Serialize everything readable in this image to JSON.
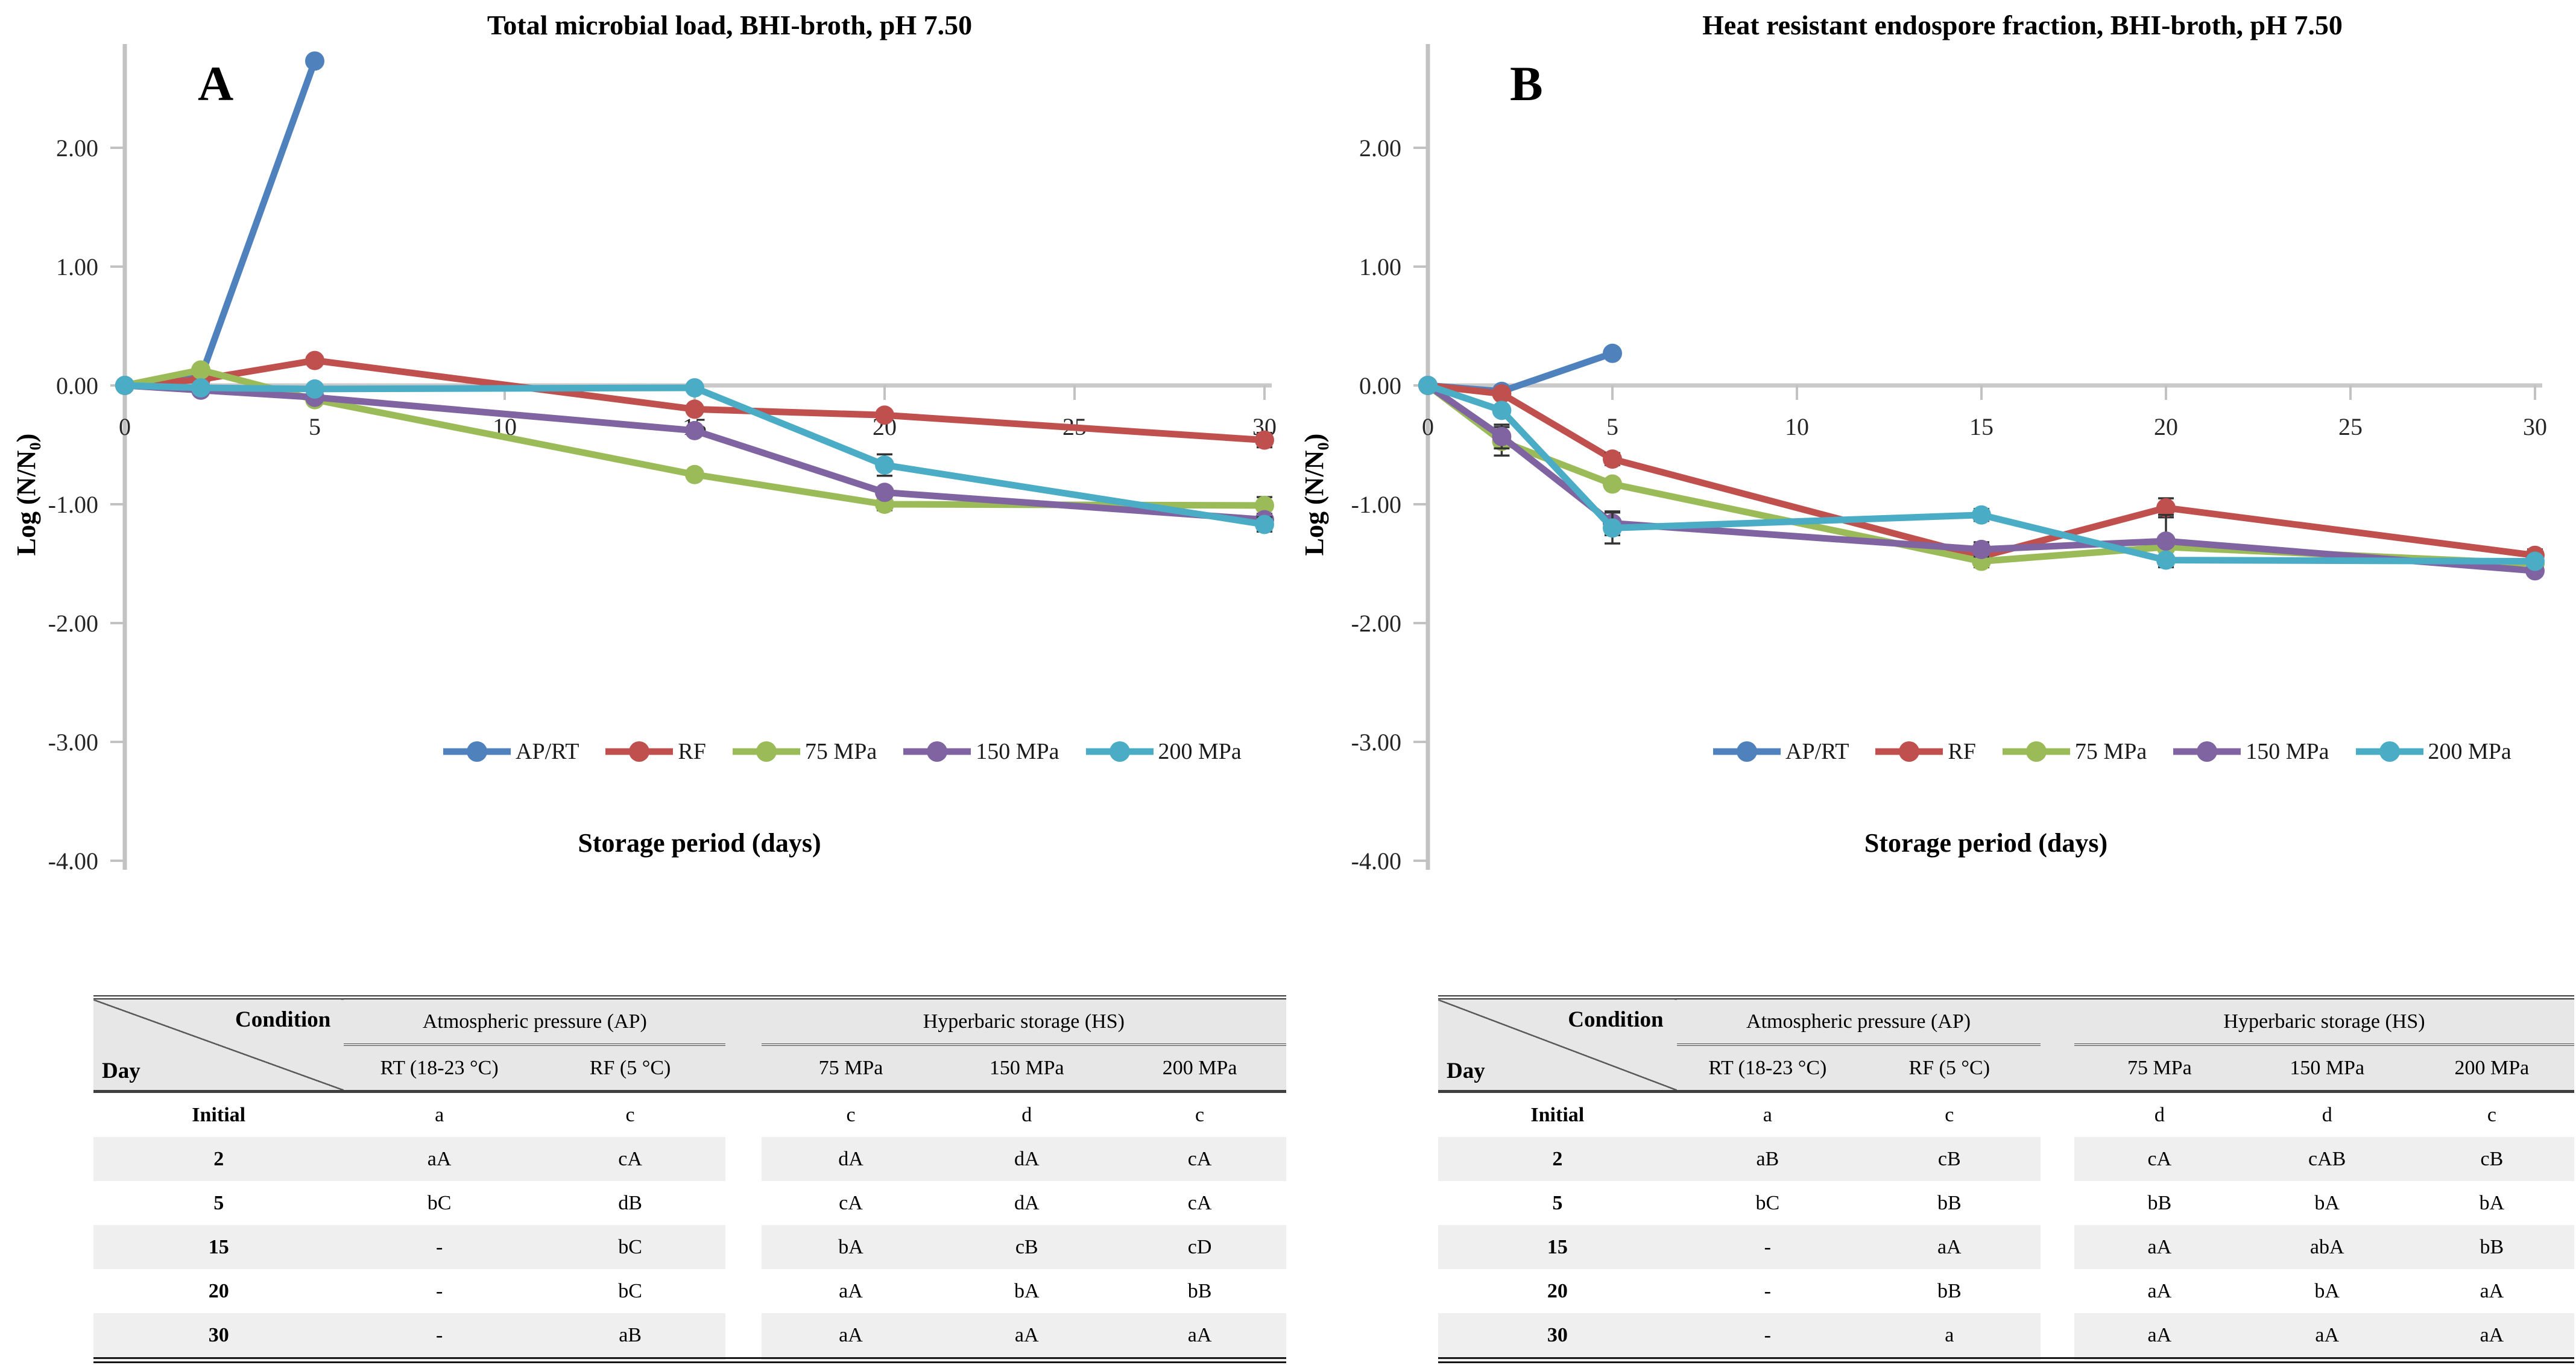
{
  "page": {
    "background": "#ffffff"
  },
  "colors": {
    "axis_line": "#C2C2C2",
    "zero_gridline": "#C9C9C9",
    "tick_text": "#262626",
    "error_bar": "#333333",
    "series_blue": "#4F81BD",
    "series_red": "#C0504D",
    "series_green": "#9BBB59",
    "series_purple": "#8064A2",
    "series_cyan": "#4BACC6"
  },
  "chart_data": [
    {
      "id": "A",
      "type": "line",
      "panel_label": "A",
      "title": "Total microbial load, BHI-broth, pH 7.50",
      "xlabel": "Storage period (days)",
      "ylabel": "Log (N/N₀)",
      "x_ticks": [
        0,
        5,
        10,
        15,
        20,
        25,
        30
      ],
      "y_ticks": [
        2.0,
        1.0,
        0.0,
        -1.0,
        -2.0,
        -3.0,
        -4.0
      ],
      "xlim": [
        0,
        30
      ],
      "ylim": [
        -4.05,
        2.87
      ],
      "grid": false,
      "legend_position": "bottom",
      "series": [
        {
          "name": "AP/RT",
          "color": "#4F81BD",
          "x": [
            0,
            2,
            5
          ],
          "y": [
            0.0,
            0.07,
            2.73
          ],
          "err": [
            0,
            0,
            0
          ]
        },
        {
          "name": "RF",
          "color": "#C0504D",
          "x": [
            0,
            2,
            5,
            15,
            20,
            30
          ],
          "y": [
            0.0,
            0.05,
            0.21,
            -0.2,
            -0.25,
            -0.46
          ],
          "err": [
            0,
            0,
            0,
            0,
            0,
            0.06
          ]
        },
        {
          "name": "75 MPa",
          "color": "#9BBB59",
          "x": [
            0,
            2,
            5,
            15,
            20,
            30
          ],
          "y": [
            0.0,
            0.13,
            -0.12,
            -0.75,
            -1.0,
            -1.01
          ],
          "err": [
            0,
            0,
            0,
            0,
            0.05,
            0.07
          ]
        },
        {
          "name": "150 MPa",
          "color": "#8064A2",
          "x": [
            0,
            2,
            5,
            15,
            20,
            30
          ],
          "y": [
            0.0,
            -0.04,
            -0.1,
            -0.38,
            -0.9,
            -1.13
          ],
          "err": [
            0,
            0,
            0,
            0,
            0,
            0.05
          ]
        },
        {
          "name": "200 MPa",
          "color": "#4BACC6",
          "x": [
            0,
            2,
            5,
            15,
            20,
            30
          ],
          "y": [
            0.0,
            -0.02,
            -0.03,
            -0.02,
            -0.67,
            -1.17
          ],
          "err": [
            0,
            0,
            0,
            0,
            0.09,
            0.06
          ]
        }
      ]
    },
    {
      "id": "B",
      "type": "line",
      "panel_label": "B",
      "title": "Heat resistant endospore fraction, BHI-broth, pH 7.50",
      "xlabel": "Storage period (days)",
      "ylabel": "Log (N/N₀)",
      "x_ticks": [
        0,
        5,
        10,
        15,
        20,
        25,
        30
      ],
      "y_ticks": [
        2.0,
        1.0,
        0.0,
        -1.0,
        -2.0,
        -3.0,
        -4.0
      ],
      "xlim": [
        0,
        30
      ],
      "ylim": [
        -4.05,
        2.87
      ],
      "grid": false,
      "legend_position": "bottom",
      "series": [
        {
          "name": "AP/RT",
          "color": "#4F81BD",
          "x": [
            0,
            2,
            5
          ],
          "y": [
            0.0,
            -0.05,
            0.27
          ],
          "err": [
            0,
            0,
            0
          ]
        },
        {
          "name": "RF",
          "color": "#C0504D",
          "x": [
            0,
            2,
            5,
            15,
            20,
            30
          ],
          "y": [
            0.0,
            -0.07,
            -0.62,
            -1.44,
            -1.03,
            -1.43
          ],
          "err": [
            0,
            0,
            0.05,
            0.06,
            0.08,
            0.05
          ]
        },
        {
          "name": "75 MPa",
          "color": "#9BBB59",
          "x": [
            0,
            2,
            5,
            15,
            20,
            30
          ],
          "y": [
            0.0,
            -0.47,
            -0.83,
            -1.48,
            -1.36,
            -1.5
          ],
          "err": [
            0,
            0.12,
            0,
            0.05,
            0,
            0
          ]
        },
        {
          "name": "150 MPa",
          "color": "#8064A2",
          "x": [
            0,
            2,
            5,
            15,
            20,
            30
          ],
          "y": [
            0.0,
            -0.43,
            -1.16,
            -1.38,
            -1.31,
            -1.56
          ],
          "err": [
            0,
            0.1,
            0.1,
            0.06,
            0.22,
            0
          ]
        },
        {
          "name": "200 MPa",
          "color": "#4BACC6",
          "x": [
            0,
            2,
            5,
            15,
            20,
            30
          ],
          "y": [
            0.0,
            -0.21,
            -1.2,
            -1.09,
            -1.47,
            -1.48
          ],
          "err": [
            0,
            0,
            0.13,
            0.05,
            0,
            0
          ]
        }
      ]
    }
  ],
  "tables": [
    {
      "id": "A",
      "corner": {
        "top": "Condition",
        "bottom": "Day"
      },
      "groups": [
        {
          "label": "Atmospheric pressure (AP)",
          "cols": [
            "RT (18-23 °C)",
            "RF (5 °C)"
          ]
        },
        {
          "label": "Hyperbaric storage (HS)",
          "cols": [
            "75 MPa",
            "150 MPa",
            "200 MPa"
          ]
        }
      ],
      "rows": [
        {
          "day": "Initial",
          "values": [
            "a",
            "c",
            "c",
            "d",
            "c"
          ]
        },
        {
          "day": "2",
          "values": [
            "aA",
            "cA",
            "dA",
            "dA",
            "cA"
          ]
        },
        {
          "day": "5",
          "values": [
            "bC",
            "dB",
            "cA",
            "dA",
            "cA"
          ]
        },
        {
          "day": "15",
          "values": [
            "-",
            "bC",
            "bA",
            "cB",
            "cD"
          ]
        },
        {
          "day": "20",
          "values": [
            "-",
            "bC",
            "aA",
            "bA",
            "bB"
          ]
        },
        {
          "day": "30",
          "values": [
            "-",
            "aB",
            "aA",
            "aA",
            "aA"
          ]
        }
      ]
    },
    {
      "id": "B",
      "corner": {
        "top": "Condition",
        "bottom": "Day"
      },
      "groups": [
        {
          "label": "Atmospheric pressure (AP)",
          "cols": [
            "RT (18-23 °C)",
            "RF (5 °C)"
          ]
        },
        {
          "label": "Hyperbaric storage (HS)",
          "cols": [
            "75 MPa",
            "150 MPa",
            "200 MPa"
          ]
        }
      ],
      "rows": [
        {
          "day": "Initial",
          "values": [
            "a",
            "c",
            "d",
            "d",
            "c"
          ]
        },
        {
          "day": "2",
          "values": [
            "aB",
            "cB",
            "cA",
            "cAB",
            "cB"
          ]
        },
        {
          "day": "5",
          "values": [
            "bC",
            "bB",
            "bB",
            "bA",
            "bA"
          ]
        },
        {
          "day": "15",
          "values": [
            "-",
            "aA",
            "aA",
            "abA",
            "bB"
          ]
        },
        {
          "day": "20",
          "values": [
            "-",
            "bB",
            "aA",
            "bA",
            "aA"
          ]
        },
        {
          "day": "30",
          "values": [
            "-",
            "a",
            "aA",
            "aA",
            "aA"
          ]
        }
      ]
    }
  ]
}
